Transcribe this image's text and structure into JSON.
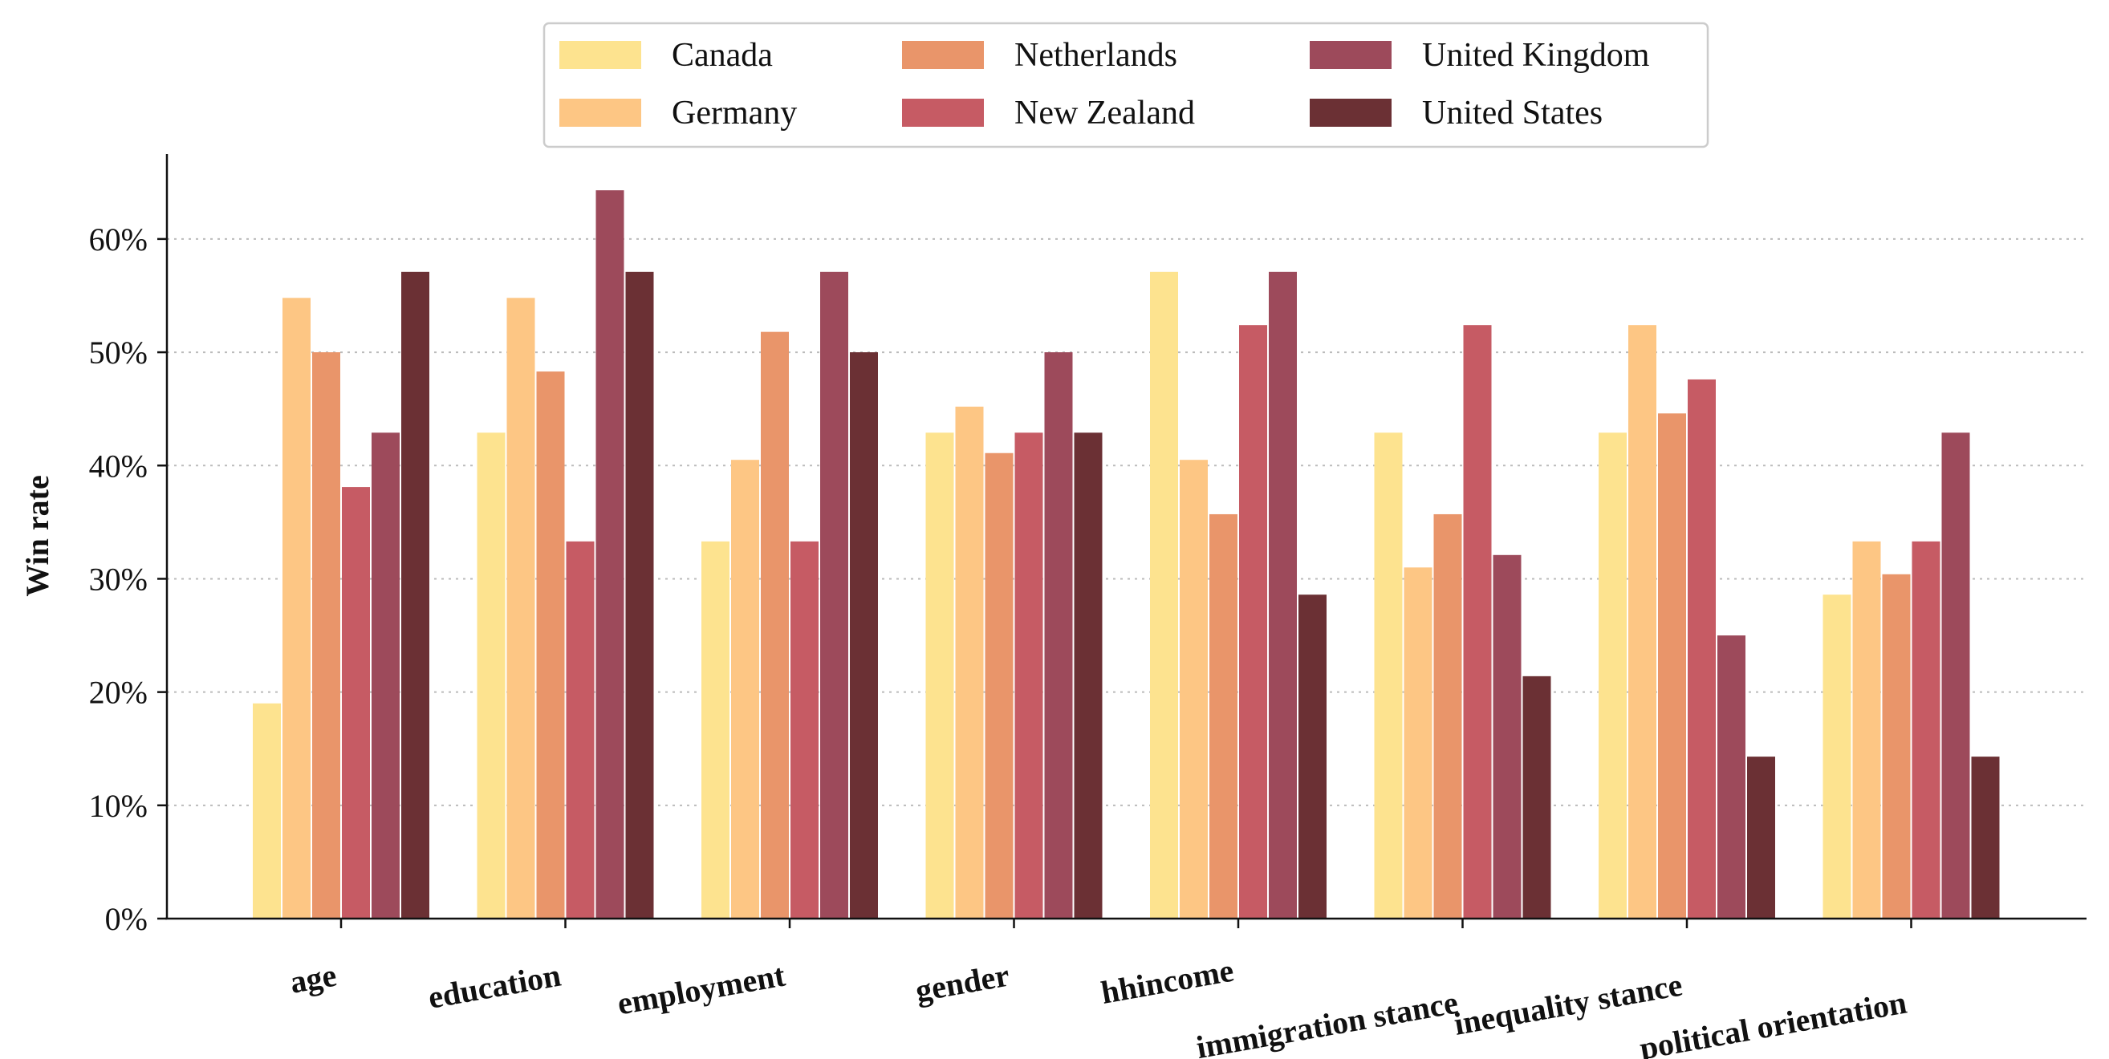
{
  "chart_data": {
    "type": "bar",
    "title": "",
    "xlabel": "",
    "ylabel": "Win rate",
    "ylim": [
      0,
      0.675
    ],
    "yticks": [
      0,
      0.1,
      0.2,
      0.3,
      0.4,
      0.5,
      0.6
    ],
    "ytick_labels": [
      "0%",
      "10%",
      "20%",
      "30%",
      "40%",
      "50%",
      "60%"
    ],
    "grid": "horizontal dotted",
    "legend_position": "top-center",
    "categories": [
      "age",
      "education",
      "employment",
      "gender",
      "hhincome",
      "immigration stance",
      "inequality stance",
      "political orientation"
    ],
    "series": [
      {
        "name": "Canada",
        "color": "#fde38f",
        "values": [
          0.19,
          0.429,
          0.333,
          0.429,
          0.571,
          0.429,
          0.429,
          0.286
        ]
      },
      {
        "name": "Germany",
        "color": "#fdc684",
        "values": [
          0.548,
          0.548,
          0.405,
          0.452,
          0.405,
          0.31,
          0.524,
          0.333
        ]
      },
      {
        "name": "Netherlands",
        "color": "#e9956a",
        "values": [
          0.5,
          0.483,
          0.518,
          0.411,
          0.357,
          0.357,
          0.446,
          0.304
        ]
      },
      {
        "name": "New Zealand",
        "color": "#c65b64",
        "values": [
          0.381,
          0.333,
          0.333,
          0.429,
          0.524,
          0.524,
          0.476,
          0.333
        ]
      },
      {
        "name": "United Kingdom",
        "color": "#9d4a5b",
        "values": [
          0.429,
          0.643,
          0.571,
          0.5,
          0.571,
          0.321,
          0.25,
          0.429
        ]
      },
      {
        "name": "United States",
        "color": "#6b3034",
        "values": [
          0.571,
          0.571,
          0.5,
          0.429,
          0.286,
          0.214,
          0.143,
          0.143
        ]
      }
    ]
  }
}
